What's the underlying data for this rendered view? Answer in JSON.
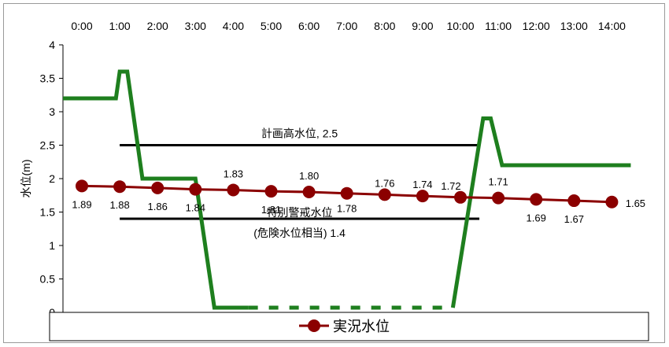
{
  "chart_data": {
    "type": "line",
    "title": "",
    "ylabel": "水位(m)",
    "xlabel": "",
    "x_categories": [
      "0:00",
      "1:00",
      "2:00",
      "3:00",
      "4:00",
      "5:00",
      "6:00",
      "7:00",
      "8:00",
      "9:00",
      "10:00",
      "11:00",
      "12:00",
      "13:00",
      "14:00"
    ],
    "y_ticks": [
      "0",
      "0.5",
      "1",
      "1.5",
      "2",
      "2.5",
      "3",
      "3.5",
      "4"
    ],
    "ylim": [
      0,
      4
    ],
    "x_axis_position": "top",
    "grid": false,
    "legend_position": "bottom",
    "series": [
      {
        "name": "実況水位",
        "color": "#8b0000",
        "marker": "circle",
        "x": [
          0,
          1,
          2,
          3,
          4,
          5,
          6,
          7,
          8,
          9,
          10,
          11,
          12,
          13,
          14
        ],
        "values": [
          1.89,
          1.88,
          1.86,
          1.84,
          1.83,
          1.81,
          1.8,
          1.78,
          1.76,
          1.74,
          1.72,
          1.71,
          1.69,
          1.67,
          1.65
        ],
        "labels": [
          "1.89",
          "1.88",
          "1.86",
          "1.84",
          "1.83",
          "1.81",
          "1.80",
          "1.78",
          "1.76",
          "1.74",
          "1.72",
          "1.71",
          "1.69",
          "1.67",
          "1.65"
        ]
      }
    ],
    "gate_line": {
      "color": "#1e7f1e",
      "solid_points": [
        [
          -0.5,
          3.2
        ],
        [
          0.9,
          3.2
        ],
        [
          1.0,
          3.6
        ],
        [
          1.2,
          3.6
        ],
        [
          1.6,
          2.0
        ],
        [
          3.0,
          2.0
        ],
        [
          3.5,
          0.07
        ],
        [
          4.4,
          0.07
        ]
      ],
      "dashed_points": [
        [
          4.4,
          0.07
        ],
        [
          9.8,
          0.07
        ]
      ],
      "solid_points_2": [
        [
          9.8,
          0.07
        ],
        [
          10.6,
          2.9
        ],
        [
          10.8,
          2.9
        ],
        [
          11.1,
          2.2
        ],
        [
          14.5,
          2.2
        ]
      ]
    },
    "reference_lines": [
      {
        "label": "計画高水位, 2.5",
        "value": 2.5,
        "x_from": 1,
        "x_to": 10.5,
        "color": "#000000"
      },
      {
        "label_line1": "特別警戒水位",
        "label_line2": "(危険水位相当) 1.4",
        "value": 1.4,
        "x_from": 1,
        "x_to": 10.5,
        "color": "#000000"
      }
    ]
  },
  "legend": {
    "label": "実況水位",
    "color": "#8b0000"
  }
}
